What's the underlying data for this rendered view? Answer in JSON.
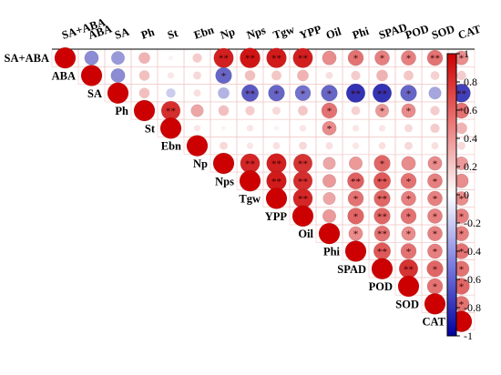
{
  "chart_data": {
    "type": "heatmap",
    "subtype": "upper-triangular correlation matrix (circle size and color encode coefficient)",
    "variables": [
      "SA+ABA",
      "ABA",
      "SA",
      "Ph",
      "St",
      "Ebn",
      "Np",
      "Nps",
      "Tgw",
      "YPP",
      "Oil",
      "Phi",
      "SPAD",
      "POD",
      "SOD",
      "CAT"
    ],
    "colorbar": {
      "ticks": [
        "1",
        "0.8",
        "0.6",
        "0.4",
        "0.2",
        "0",
        "-0.2",
        "-0.4",
        "-0.6",
        "-0.8",
        "-1"
      ],
      "range": [
        -1,
        1
      ],
      "colors": {
        "high": "#cc0000",
        "mid": "#ffffff",
        "low": "#0000a0"
      },
      "placement": "right"
    },
    "grid": true,
    "values": [
      [
        1,
        -0.45,
        -0.4,
        0.3,
        0.05,
        0.2,
        0.88,
        0.92,
        0.9,
        0.88,
        0.45,
        0.55,
        0.5,
        0.5,
        0.55,
        0.45
      ],
      [
        null,
        1,
        -0.45,
        0.25,
        0.1,
        0.15,
        -0.6,
        0.25,
        0.22,
        0.3,
        0.12,
        0.2,
        0.3,
        0.22,
        0.18,
        0.2
      ],
      [
        null,
        null,
        1,
        0.25,
        -0.2,
        0.12,
        -0.3,
        -0.65,
        -0.6,
        -0.55,
        -0.6,
        -0.8,
        -0.8,
        -0.6,
        -0.35,
        -0.75
      ],
      [
        null,
        null,
        null,
        1,
        0.82,
        0.35,
        0.25,
        0.2,
        0.15,
        0.22,
        0.55,
        0.18,
        0.4,
        0.45,
        0.2,
        0.55
      ],
      [
        null,
        null,
        null,
        null,
        1,
        0.1,
        0.05,
        0.1,
        0.05,
        0.1,
        0.45,
        0.1,
        0.1,
        0.15,
        0.2,
        0.3
      ],
      [
        null,
        null,
        null,
        null,
        null,
        1,
        0.15,
        0.1,
        0.12,
        0.15,
        0.12,
        0.1,
        0.12,
        0.15,
        0.12,
        0.15
      ],
      [
        null,
        null,
        null,
        null,
        null,
        null,
        1,
        0.85,
        0.88,
        0.8,
        0.35,
        0.4,
        0.6,
        0.45,
        0.45,
        0.4
      ],
      [
        null,
        null,
        null,
        null,
        null,
        null,
        null,
        1,
        0.9,
        0.82,
        0.4,
        0.62,
        0.65,
        0.55,
        0.5,
        0.45
      ],
      [
        null,
        null,
        null,
        null,
        null,
        null,
        null,
        null,
        1,
        0.85,
        0.35,
        0.55,
        0.6,
        0.5,
        0.5,
        0.45
      ],
      [
        null,
        null,
        null,
        null,
        null,
        null,
        null,
        null,
        null,
        1,
        0.4,
        0.6,
        0.6,
        0.55,
        0.5,
        0.5
      ],
      [
        null,
        null,
        null,
        null,
        null,
        null,
        null,
        null,
        null,
        null,
        1,
        0.45,
        0.55,
        0.45,
        0.5,
        0.5
      ],
      [
        null,
        null,
        null,
        null,
        null,
        null,
        null,
        null,
        null,
        null,
        null,
        1,
        0.65,
        0.55,
        0.5,
        0.55
      ],
      [
        null,
        null,
        null,
        null,
        null,
        null,
        null,
        null,
        null,
        null,
        null,
        null,
        1,
        0.8,
        0.6,
        0.55
      ],
      [
        null,
        null,
        null,
        null,
        null,
        null,
        null,
        null,
        null,
        null,
        null,
        null,
        null,
        1,
        0.55,
        0.6
      ],
      [
        null,
        null,
        null,
        null,
        null,
        null,
        null,
        null,
        null,
        null,
        null,
        null,
        null,
        null,
        1,
        0.55
      ],
      [
        null,
        null,
        null,
        null,
        null,
        null,
        null,
        null,
        null,
        null,
        null,
        null,
        null,
        null,
        null,
        1
      ]
    ],
    "significance": [
      [
        "",
        "",
        "",
        "",
        "",
        "",
        "**",
        "**",
        "**",
        "**",
        "",
        "*",
        "*",
        "*",
        "**",
        "*"
      ],
      [
        null,
        "",
        "",
        "",
        "",
        "",
        "*",
        "",
        "",
        "",
        "",
        "",
        "",
        "",
        "",
        ""
      ],
      [
        null,
        null,
        "",
        "",
        "",
        "",
        "",
        "**",
        "*",
        "*",
        "*",
        "**",
        "**",
        "*",
        "",
        "**"
      ],
      [
        null,
        null,
        null,
        "",
        "**",
        "",
        "",
        "",
        "",
        "",
        "*",
        "",
        "*",
        "*",
        "",
        "*"
      ],
      [
        null,
        null,
        null,
        null,
        "",
        "",
        "",
        "",
        "",
        "",
        "*",
        "",
        "",
        "",
        "",
        ""
      ],
      [
        null,
        null,
        null,
        null,
        null,
        "",
        "",
        "",
        "",
        "",
        "",
        "",
        "",
        "",
        "",
        ""
      ],
      [
        null,
        null,
        null,
        null,
        null,
        null,
        "",
        "**",
        "**",
        "**",
        "",
        "",
        "*",
        "",
        "*",
        ""
      ],
      [
        null,
        null,
        null,
        null,
        null,
        null,
        null,
        "",
        "**",
        "**",
        "",
        "**",
        "**",
        "*",
        "*",
        ""
      ],
      [
        null,
        null,
        null,
        null,
        null,
        null,
        null,
        null,
        "",
        "**",
        "",
        "*",
        "**",
        "*",
        "*",
        "*"
      ],
      [
        null,
        null,
        null,
        null,
        null,
        null,
        null,
        null,
        null,
        "",
        "",
        "*",
        "**",
        "*",
        "*",
        "*"
      ],
      [
        null,
        null,
        null,
        null,
        null,
        null,
        null,
        null,
        null,
        null,
        "",
        "*",
        "**",
        "*",
        "*",
        "*"
      ],
      [
        null,
        null,
        null,
        null,
        null,
        null,
        null,
        null,
        null,
        null,
        null,
        "",
        "**",
        "*",
        "*",
        "*"
      ],
      [
        null,
        null,
        null,
        null,
        null,
        null,
        null,
        null,
        null,
        null,
        null,
        null,
        "",
        "**",
        "*",
        "*"
      ],
      [
        null,
        null,
        null,
        null,
        null,
        null,
        null,
        null,
        null,
        null,
        null,
        null,
        null,
        "",
        "*",
        "*"
      ],
      [
        null,
        null,
        null,
        null,
        null,
        null,
        null,
        null,
        null,
        null,
        null,
        null,
        null,
        null,
        "",
        "*"
      ],
      [
        null,
        null,
        null,
        null,
        null,
        null,
        null,
        null,
        null,
        null,
        null,
        null,
        null,
        null,
        null,
        ""
      ]
    ]
  }
}
